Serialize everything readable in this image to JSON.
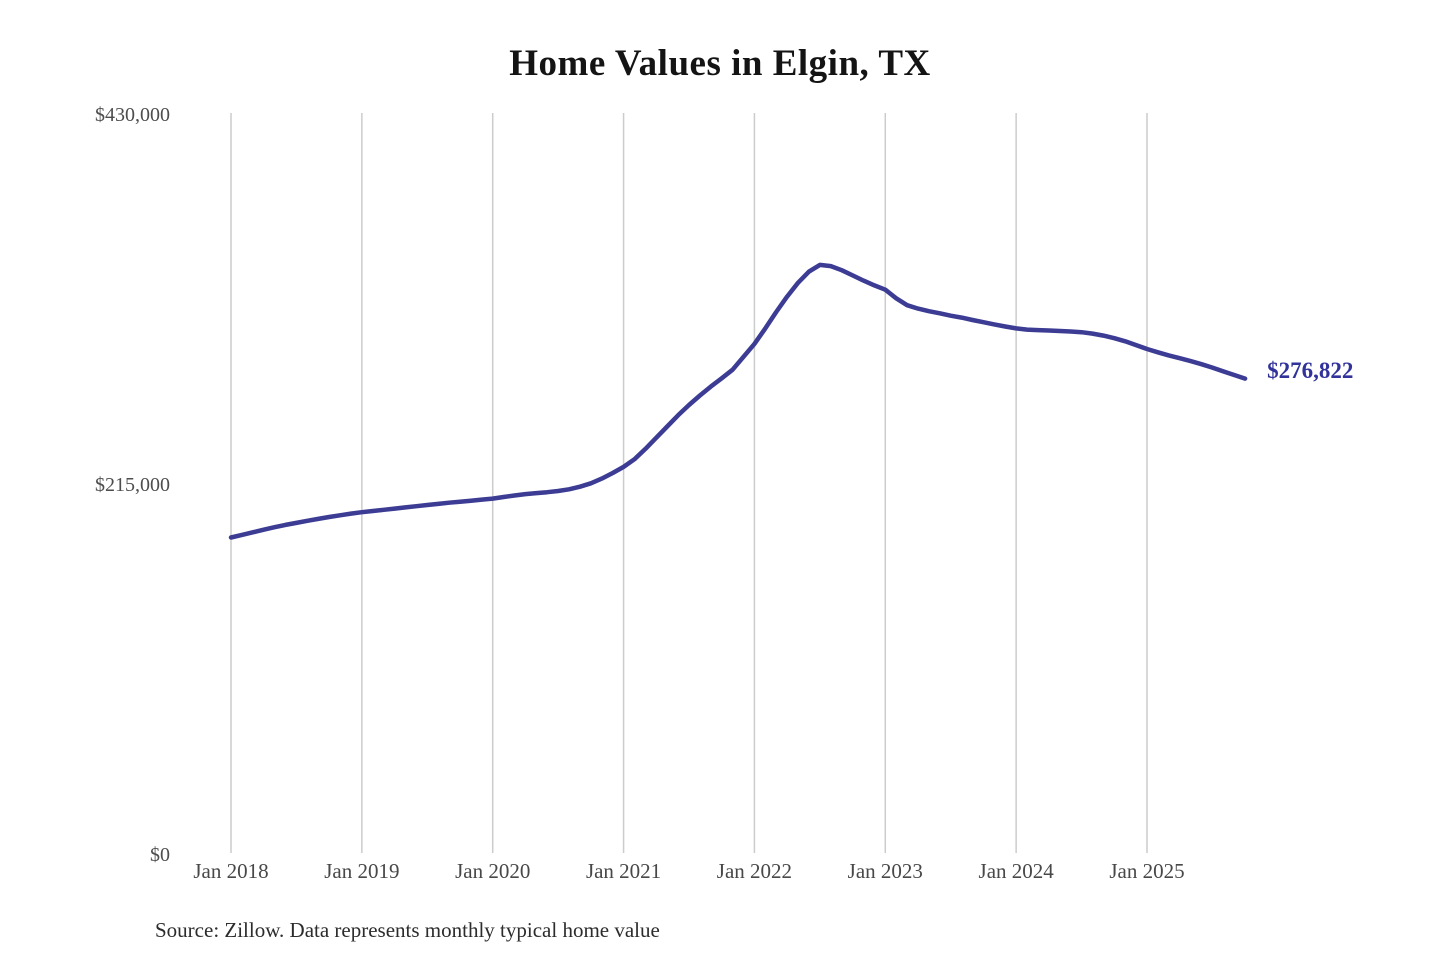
{
  "chart_data": {
    "type": "line",
    "title": "Home Values in Elgin, TX",
    "source_note": "Source: Zillow. Data represents monthly typical home value",
    "end_label": "$276,822",
    "latest_value": 276822,
    "series_name": "Monthly typical home value",
    "x_ticks": [
      "Jan 2018",
      "Jan 2019",
      "Jan 2020",
      "Jan 2021",
      "Jan 2022",
      "Jan 2023",
      "Jan 2024",
      "Jan 2025"
    ],
    "y_ticks": [
      {
        "label": "$430,000",
        "value": 430000
      },
      {
        "label": "$215,000",
        "value": 215000
      },
      {
        "label": "$0",
        "value": 0
      }
    ],
    "ylim": [
      0,
      430000
    ],
    "x_start": "Jan 2018",
    "x_end": "Oct 2025",
    "grid": "vertical-only",
    "legend": "none",
    "values": [
      184500,
      186000,
      187500,
      189000,
      190500,
      191800,
      193000,
      194200,
      195300,
      196400,
      197400,
      198400,
      199200,
      199900,
      200600,
      201300,
      202000,
      202700,
      203400,
      204000,
      204700,
      205300,
      205900,
      206500,
      207100,
      208000,
      208900,
      209700,
      210300,
      210800,
      211500,
      212500,
      214000,
      216000,
      218700,
      222000,
      225500,
      230000,
      236000,
      242500,
      249000,
      255500,
      261500,
      267000,
      272200,
      277000,
      282000,
      289500,
      297000,
      306000,
      315500,
      324500,
      332500,
      339000,
      342900,
      342200,
      339800,
      336800,
      333800,
      331000,
      328500,
      323500,
      319500,
      317500,
      316000,
      314800,
      313400,
      312300,
      310900,
      309600,
      308300,
      307100,
      306000,
      305300,
      305000,
      304800,
      304500,
      304200,
      303800,
      303000,
      301800,
      300300,
      298500,
      296300,
      294000,
      292100,
      290300,
      288700,
      287000,
      285200,
      283200,
      281000,
      278900,
      276822
    ],
    "colors": {
      "line": "#3c3c94",
      "end_label": "#32329b",
      "grid": "#cccccc",
      "axis_text": "#4a4a4a",
      "title": "#141414",
      "source_text": "#2c2c2c",
      "background": "#ffffff"
    }
  }
}
